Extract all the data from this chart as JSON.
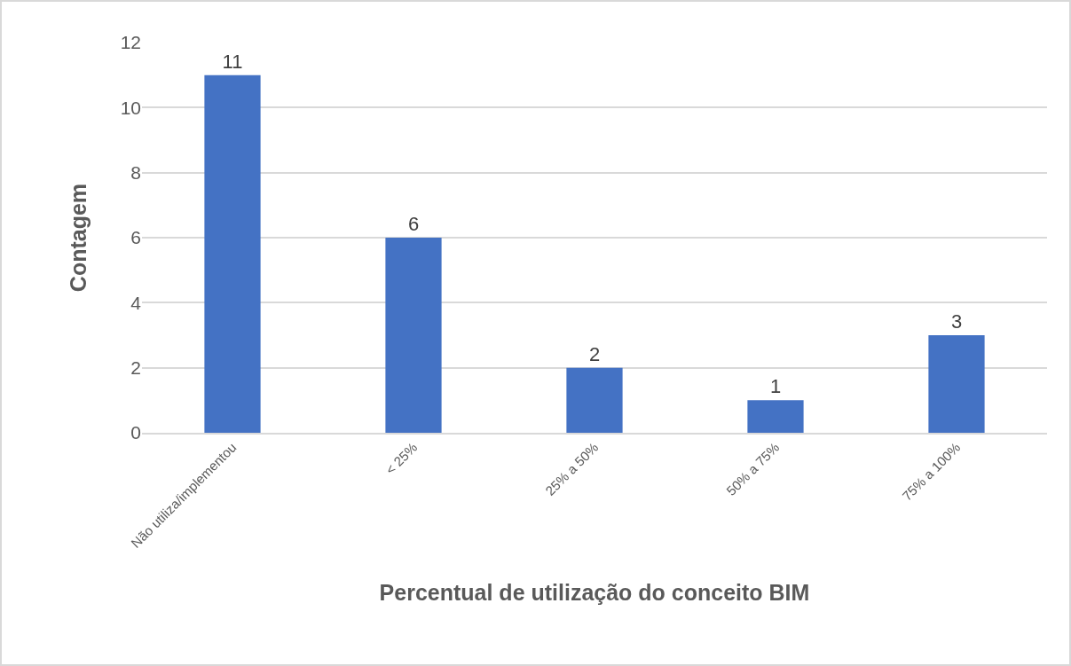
{
  "chart_data": {
    "type": "bar",
    "xlabel": "Percentual de utilização do conceito BIM",
    "ylabel": "Contagem",
    "categories": [
      "Não utiliza/implementou",
      "< 25%",
      "25% a 50%",
      "50% a 75%",
      "75% a 100%"
    ],
    "values": [
      11,
      6,
      2,
      1,
      3
    ],
    "color": "#4472c4",
    "ylim": [
      0,
      12
    ],
    "yticks": [
      0,
      2,
      4,
      6,
      8,
      10,
      12
    ],
    "grid": "y",
    "data_labels": true
  }
}
